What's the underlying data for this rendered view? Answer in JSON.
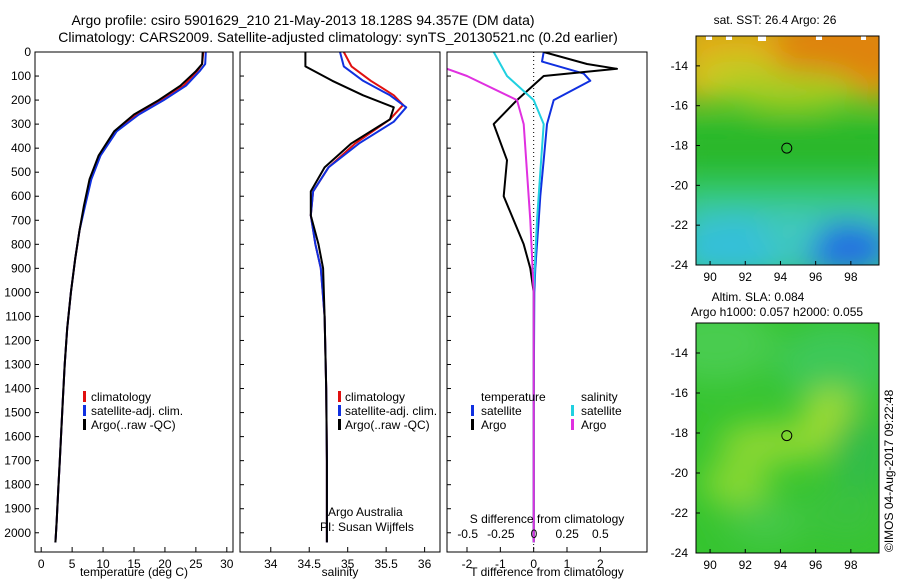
{
  "title_line1": "Argo profile: csiro 5901629_210 21-May-2013 18.128S 94.357E (DM data)",
  "title_line2": "Climatology: CARS2009. Satellite-adjusted climatology: synTS_20130521.nc (0.2d earlier)",
  "colors": {
    "climatology": "#e01010",
    "satellite": "#1030e0",
    "argo": "#000000",
    "sal_satellite": "#20d0e0",
    "sal_argo": "#e030e0"
  },
  "legend": {
    "climatology": "climatology",
    "satellite": "satellite-adj. clim.",
    "argo": "Argo(..raw -QC)"
  },
  "diff_legend": {
    "temperature": "temperature",
    "salinity": "salinity",
    "satellite": "satellite",
    "argo": "Argo"
  },
  "credit": {
    "line1": "Argo Australia",
    "line2": "PI: Susan Wijffels"
  },
  "diff_top_label": "S difference from climatology",
  "map1_title": "sat. SST: 26.4 Argo: 26",
  "map2_title_line1": "Altim. SLA: 0.084",
  "map2_title_line2": "Argo h1000: 0.057 h2000: 0.055",
  "watermark": "©IMOS 04-Aug-2017 09:22:48",
  "chart_data": [
    {
      "type": "line",
      "xlabel": "temperature (deg C)",
      "xlim": [
        -1,
        31
      ],
      "ylim": [
        0,
        2080
      ],
      "xticks": [
        0,
        5,
        10,
        15,
        20,
        25,
        30
      ],
      "yticks": [
        0,
        100,
        200,
        300,
        400,
        500,
        600,
        700,
        800,
        900,
        1000,
        1100,
        1200,
        1300,
        1400,
        1500,
        1600,
        1700,
        1800,
        1900,
        2000
      ],
      "series": [
        {
          "name": "climatology",
          "x": [
            26.2,
            26.0,
            25.2,
            23.0,
            19.5,
            15.5,
            12.0,
            9.5,
            8.0,
            7.0,
            6.2,
            5.5,
            4.8,
            4.2,
            3.8,
            3.5,
            3.2,
            3.0,
            2.8,
            2.6,
            2.5,
            2.4,
            2.3
          ],
          "y": [
            0,
            50,
            80,
            140,
            200,
            260,
            330,
            430,
            530,
            640,
            740,
            860,
            1000,
            1150,
            1300,
            1450,
            1600,
            1700,
            1800,
            1900,
            1950,
            2000,
            2040
          ]
        },
        {
          "name": "satellite-adj. clim.",
          "x": [
            26.6,
            26.5,
            25.6,
            23.4,
            19.8,
            15.8,
            12.2,
            9.6,
            8.1,
            7.1,
            6.2,
            5.5,
            4.8,
            4.2,
            3.8,
            3.5,
            3.2,
            3.0,
            2.8,
            2.6,
            2.5,
            2.4,
            2.3
          ],
          "y": [
            0,
            50,
            80,
            140,
            200,
            260,
            330,
            430,
            530,
            640,
            740,
            860,
            1000,
            1150,
            1300,
            1450,
            1600,
            1700,
            1800,
            1900,
            1950,
            2000,
            2040
          ]
        },
        {
          "name": "Argo(..raw -QC)",
          "x": [
            26.1,
            26.0,
            25.0,
            22.5,
            19.0,
            15.0,
            11.8,
            9.3,
            7.8,
            6.9,
            6.2,
            5.5,
            4.8,
            4.2,
            3.8,
            3.5,
            3.2,
            3.0,
            2.8,
            2.6,
            2.5,
            2.4,
            2.3
          ],
          "y": [
            0,
            50,
            80,
            140,
            200,
            260,
            330,
            430,
            530,
            640,
            740,
            860,
            1000,
            1150,
            1300,
            1450,
            1600,
            1700,
            1800,
            1900,
            1950,
            2000,
            2040
          ]
        }
      ]
    },
    {
      "type": "line",
      "xlabel": "salinity",
      "xlim": [
        33.6,
        36.2
      ],
      "ylim": [
        0,
        2080
      ],
      "xticks": [
        34,
        34.5,
        35,
        35.5,
        36
      ],
      "series": [
        {
          "name": "climatology",
          "x": [
            34.95,
            35.05,
            35.3,
            35.6,
            35.72,
            35.55,
            35.1,
            34.75,
            34.55,
            34.52,
            34.58,
            34.65,
            34.7,
            34.72,
            34.73,
            34.73,
            34.73
          ],
          "y": [
            0,
            60,
            120,
            180,
            220,
            280,
            380,
            480,
            580,
            680,
            800,
            900,
            1100,
            1400,
            1700,
            2000,
            2040
          ]
        },
        {
          "name": "satellite-adj. clim.",
          "x": [
            34.9,
            34.95,
            35.2,
            35.55,
            35.76,
            35.6,
            35.15,
            34.75,
            34.55,
            34.52,
            34.58,
            34.65,
            34.7,
            34.72,
            34.73,
            34.73,
            34.73
          ],
          "y": [
            0,
            60,
            120,
            180,
            230,
            290,
            380,
            480,
            580,
            680,
            800,
            900,
            1100,
            1400,
            1700,
            2000,
            2040
          ]
        },
        {
          "name": "Argo(..raw -QC)",
          "x": [
            34.45,
            34.45,
            34.8,
            35.2,
            35.6,
            35.55,
            35.05,
            34.7,
            34.52,
            34.52,
            34.62,
            34.68,
            34.7,
            34.72,
            34.73,
            34.73,
            34.73
          ],
          "y": [
            0,
            60,
            120,
            180,
            230,
            280,
            380,
            480,
            580,
            680,
            800,
            900,
            1100,
            1400,
            1700,
            2000,
            2040
          ]
        }
      ]
    },
    {
      "type": "line",
      "xlabel": "T difference from climatology",
      "xlim": [
        -2.6,
        3.4
      ],
      "ylim": [
        0,
        2080
      ],
      "xticks": [
        -2,
        -1,
        0,
        1,
        2
      ],
      "top_ticks": [
        "-0.5",
        "-0.25",
        "0",
        "0.25",
        "0.5"
      ],
      "series": [
        {
          "name": "temperature satellite",
          "x": [
            0.3,
            0.25,
            1.5,
            1.7,
            0.6,
            0.4,
            0.3,
            0.2,
            0.15,
            0.1,
            0.05,
            0.02,
            0.0,
            0.0
          ],
          "y": [
            0,
            40,
            90,
            120,
            200,
            300,
            450,
            600,
            700,
            800,
            900,
            1000,
            1500,
            2040
          ]
        },
        {
          "name": "temperature Argo",
          "x": [
            0.3,
            1.6,
            2.5,
            0.3,
            -0.5,
            -1.2,
            -0.8,
            -0.9,
            -0.6,
            -0.3,
            -0.1,
            0.0,
            0.0,
            0.0
          ],
          "y": [
            0,
            50,
            70,
            100,
            200,
            300,
            450,
            600,
            700,
            800,
            900,
            1000,
            1500,
            2040
          ]
        },
        {
          "name": "salinity satellite",
          "x": [
            -1.2,
            -1.0,
            -0.8,
            0.0,
            0.3,
            0.2,
            0.1,
            0.05,
            0.0,
            0.0,
            0.0
          ],
          "y": [
            0,
            50,
            100,
            200,
            300,
            500,
            700,
            850,
            1000,
            1500,
            2040
          ]
        },
        {
          "name": "salinity Argo",
          "x": [
            -4.0,
            -3.0,
            -2.0,
            -0.5,
            -0.3,
            -0.2,
            -0.1,
            -0.05,
            0.0,
            0.0,
            0.0
          ],
          "y": [
            0,
            50,
            100,
            200,
            300,
            500,
            700,
            850,
            1000,
            1500,
            2040
          ]
        }
      ]
    },
    {
      "type": "heatmap",
      "title": "sat. SST: 26.4 Argo: 26",
      "xlim": [
        89.2,
        99.6
      ],
      "ylim": [
        -24.0,
        -12.5
      ],
      "xticks": [
        90,
        92,
        94,
        96,
        98
      ],
      "yticks": [
        -14,
        -16,
        -18,
        -20,
        -22,
        -24
      ],
      "marker": {
        "lon": 94.36,
        "lat": -18.13
      }
    },
    {
      "type": "heatmap",
      "title": "Altim. SLA: 0.084",
      "xlim": [
        89.2,
        99.6
      ],
      "ylim": [
        -24.0,
        -12.5
      ],
      "xticks": [
        90,
        92,
        94,
        96,
        98
      ],
      "yticks": [
        -14,
        -16,
        -18,
        -20,
        -22,
        -24
      ],
      "marker": {
        "lon": 94.36,
        "lat": -18.13
      }
    }
  ]
}
